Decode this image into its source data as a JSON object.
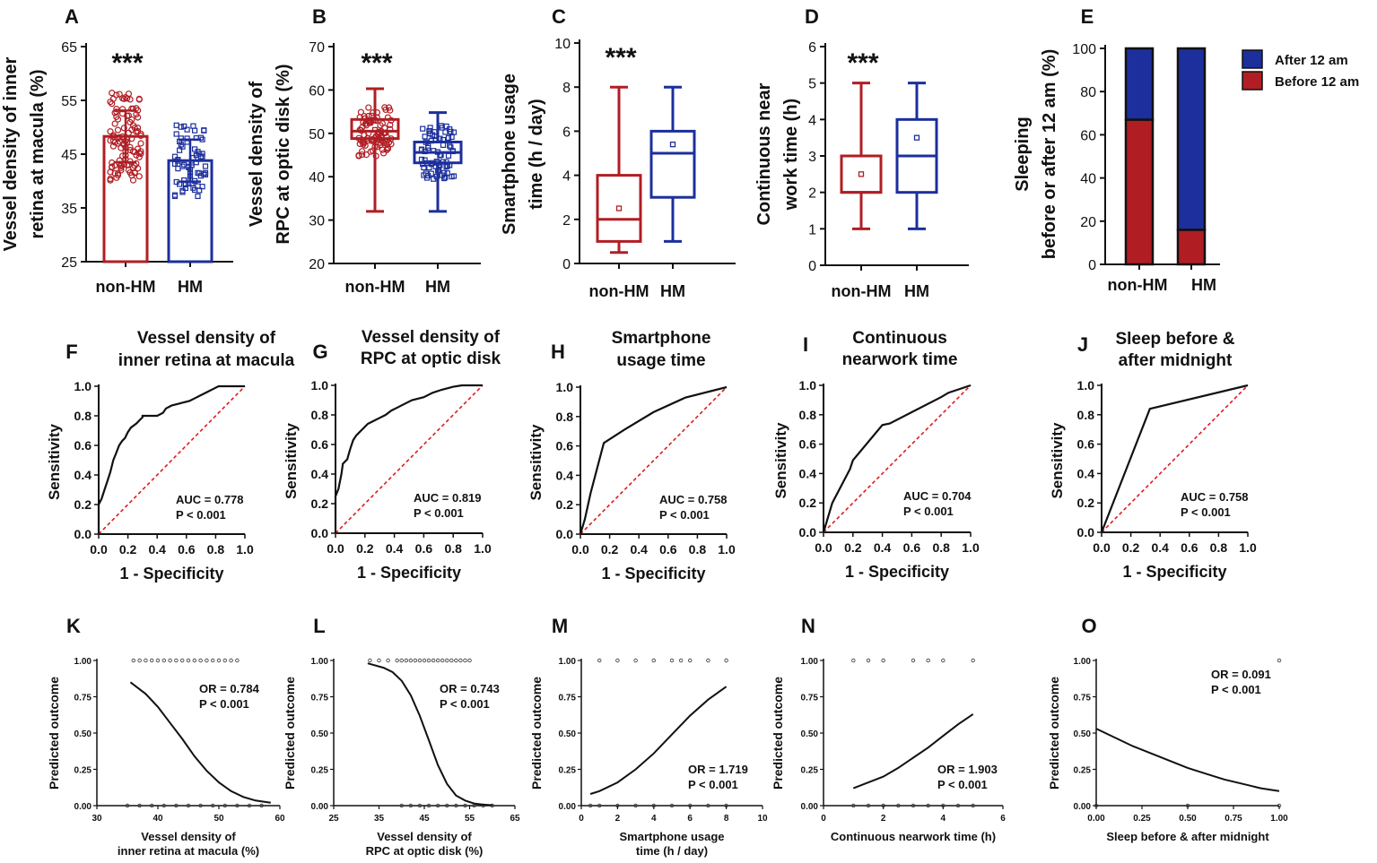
{
  "colors": {
    "red": "#b01e24",
    "blue": "#1c2f9c",
    "black": "#111111",
    "ref": "#e01a1a"
  },
  "chart_data": [
    {
      "id": "A",
      "letter": "A",
      "type": "bar",
      "title": [
        "Vessel density of inner",
        "retina at macula (%)"
      ],
      "categories": [
        "non-HM",
        "HM"
      ],
      "values": [
        48.3,
        43.8
      ],
      "sd": [
        4.8,
        3.9
      ],
      "ylim": [
        25,
        65
      ],
      "yticks": [
        25,
        35,
        45,
        55,
        65
      ],
      "stars": "***",
      "series_colors": [
        "red",
        "blue"
      ]
    },
    {
      "id": "B",
      "letter": "B",
      "type": "box",
      "title": [
        "Vessel density of",
        "RPC at optic disk (%)"
      ],
      "categories": [
        "non-HM",
        "HM"
      ],
      "boxes": [
        {
          "min": 32,
          "q1": 48.8,
          "median": 50.5,
          "q3": 53.2,
          "max": 60.3,
          "mean": 50.8
        },
        {
          "min": 32,
          "q1": 43.2,
          "median": 45.6,
          "q3": 48,
          "max": 54.8,
          "mean": 45.7
        }
      ],
      "ylim": [
        20,
        70
      ],
      "yticks": [
        20,
        30,
        40,
        50,
        60,
        70
      ],
      "stars": "***",
      "series_colors": [
        "red",
        "blue"
      ]
    },
    {
      "id": "C",
      "letter": "C",
      "type": "box",
      "title": [
        "Smartphone usage",
        "time (h / day)"
      ],
      "categories": [
        "non-HM",
        "HM"
      ],
      "boxes": [
        {
          "min": 0.5,
          "q1": 1,
          "median": 2,
          "q3": 4,
          "max": 8,
          "mean": 2.5
        },
        {
          "min": 1,
          "q1": 3,
          "median": 5,
          "q3": 6,
          "max": 8,
          "mean": 5.4
        }
      ],
      "ylim": [
        0,
        10
      ],
      "yticks": [
        0,
        2,
        4,
        6,
        8,
        10
      ],
      "stars": "***",
      "series_colors": [
        "red",
        "blue"
      ]
    },
    {
      "id": "D",
      "letter": "D",
      "type": "box",
      "title": [
        "Continuous near",
        "work time (h)"
      ],
      "categories": [
        "non-HM",
        "HM"
      ],
      "boxes": [
        {
          "min": 1,
          "q1": 2,
          "median": 2,
          "q3": 3,
          "max": 5,
          "mean": 2.5
        },
        {
          "min": 1,
          "q1": 2,
          "median": 3,
          "q3": 4,
          "max": 5,
          "mean": 3.5
        }
      ],
      "ylim": [
        0,
        6
      ],
      "yticks": [
        0,
        1,
        2,
        3,
        4,
        5,
        6
      ],
      "stars": "***",
      "series_colors": [
        "red",
        "blue"
      ]
    },
    {
      "id": "E",
      "letter": "E",
      "type": "stacked_bar",
      "title": [
        "Sleeping",
        "before or after 12 am (%)"
      ],
      "categories": [
        "non-HM",
        "HM"
      ],
      "series": [
        {
          "name": "Before 12 am",
          "values": [
            67,
            16
          ],
          "color": "red"
        },
        {
          "name": "After   12 am",
          "values": [
            33,
            84
          ],
          "color": "blue"
        }
      ],
      "ylim": [
        0,
        100
      ],
      "yticks": [
        0,
        20,
        40,
        60,
        80,
        100
      ]
    },
    {
      "id": "F",
      "letter": "F",
      "type": "line",
      "title": [
        "Vessel density of",
        "inner retina at macula"
      ],
      "xlabel": "1 - Specificity",
      "ylabel": "Sensitivity",
      "auc": "AUC = 0.778",
      "p": "P < 0.001",
      "x": [
        0,
        0,
        0.02,
        0.04,
        0.06,
        0.08,
        0.1,
        0.12,
        0.14,
        0.16,
        0.18,
        0.2,
        0.22,
        0.26,
        0.28,
        0.3,
        0.3,
        0.32,
        0.36,
        0.4,
        0.44,
        0.46,
        0.48,
        0.5,
        0.54,
        0.58,
        0.62,
        0.66,
        0.7,
        0.74,
        0.78,
        0.82,
        1
      ],
      "y": [
        0,
        0.2,
        0.24,
        0.3,
        0.36,
        0.42,
        0.5,
        0.55,
        0.6,
        0.63,
        0.65,
        0.69,
        0.72,
        0.75,
        0.77,
        0.79,
        0.8,
        0.8,
        0.8,
        0.8,
        0.82,
        0.85,
        0.86,
        0.87,
        0.88,
        0.89,
        0.9,
        0.92,
        0.94,
        0.96,
        0.98,
        1,
        1
      ]
    },
    {
      "id": "G",
      "letter": "G",
      "type": "line",
      "title": [
        "Vessel density of",
        "RPC at optic disk"
      ],
      "xlabel": "1 - Specificity",
      "ylabel": "Sensitivity",
      "auc": "AUC = 0.819",
      "p": "P < 0.001",
      "x": [
        0,
        0,
        0.02,
        0.04,
        0.05,
        0.08,
        0.1,
        0.12,
        0.14,
        0.16,
        0.18,
        0.2,
        0.22,
        0.26,
        0.3,
        0.34,
        0.38,
        0.42,
        0.48,
        0.52,
        0.6,
        0.66,
        0.72,
        0.8,
        0.86,
        1
      ],
      "y": [
        0,
        0.25,
        0.3,
        0.4,
        0.47,
        0.5,
        0.57,
        0.63,
        0.66,
        0.68,
        0.7,
        0.72,
        0.74,
        0.76,
        0.78,
        0.8,
        0.83,
        0.85,
        0.88,
        0.9,
        0.92,
        0.95,
        0.97,
        0.99,
        1,
        1
      ]
    },
    {
      "id": "H",
      "letter": "H",
      "type": "line",
      "title": [
        "Smartphone",
        "usage time"
      ],
      "xlabel": "1 - Specificity",
      "ylabel": "Sensitivity",
      "auc": "AUC = 0.758",
      "p": "P < 0.001",
      "x": [
        0,
        0.03,
        0.07,
        0.16,
        0.3,
        0.5,
        0.72,
        1
      ],
      "y": [
        0,
        0.1,
        0.28,
        0.62,
        0.71,
        0.83,
        0.93,
        1
      ]
    },
    {
      "id": "I",
      "letter": "I",
      "type": "line",
      "title": [
        "Continuous",
        "nearwork time"
      ],
      "xlabel": "1 - Specificity",
      "ylabel": "Sensitivity",
      "auc": "AUC = 0.704",
      "p": "P < 0.001",
      "x": [
        0,
        0.06,
        0.18,
        0.2,
        0.4,
        0.45,
        0.8,
        0.85,
        1
      ],
      "y": [
        0,
        0.2,
        0.43,
        0.49,
        0.73,
        0.74,
        0.92,
        0.95,
        1
      ]
    },
    {
      "id": "J",
      "letter": "J",
      "type": "line",
      "title": [
        "Sleep before &",
        "after midnight"
      ],
      "xlabel": "1 - Specificity",
      "ylabel": "Sensitivity",
      "auc": "AUC = 0.758",
      "p": "P < 0.001",
      "x": [
        0,
        0.33,
        1
      ],
      "y": [
        0,
        0.84,
        1
      ]
    },
    {
      "id": "K",
      "letter": "K",
      "type": "logistic",
      "xlabel": [
        "Vessel density of",
        "inner retina at macula (%)"
      ],
      "ylabel": "Predicted outcome",
      "or": "OR = 0.784",
      "p": "P < 0.001",
      "xlim": [
        30,
        60
      ],
      "xticks": [
        30,
        40,
        50,
        60
      ],
      "curve_x": [
        35.5,
        38,
        40,
        42,
        44,
        46,
        48,
        50,
        52,
        54,
        56,
        58.5
      ],
      "curve_y": [
        0.85,
        0.77,
        0.68,
        0.57,
        0.46,
        0.34,
        0.24,
        0.16,
        0.1,
        0.06,
        0.035,
        0.02
      ],
      "points1_x": [
        36,
        37,
        38,
        39,
        40,
        41,
        42,
        43,
        44,
        45,
        46,
        47,
        48,
        49,
        50,
        51,
        52,
        53
      ],
      "points0_x": [
        35,
        37,
        39,
        41,
        43,
        45,
        47,
        49,
        51,
        53,
        55,
        57
      ]
    },
    {
      "id": "L",
      "letter": "L",
      "type": "logistic",
      "xlabel": [
        "Vessel density of",
        "RPC at optic disk (%)"
      ],
      "ylabel": "Predicted outcome",
      "or": "OR = 0.743",
      "p": "P < 0.001",
      "xlim": [
        25,
        65
      ],
      "xticks": [
        25,
        35,
        45,
        55,
        65
      ],
      "curve_x": [
        32.5,
        36,
        38,
        40,
        42,
        44,
        46,
        48,
        50,
        52,
        54,
        56,
        58,
        60
      ],
      "curve_y": [
        0.98,
        0.95,
        0.92,
        0.86,
        0.76,
        0.62,
        0.45,
        0.28,
        0.15,
        0.07,
        0.035,
        0.015,
        0.007,
        0.003
      ],
      "points1_x": [
        33,
        35,
        37,
        39,
        40,
        41,
        42,
        43,
        44,
        45,
        46,
        47,
        48,
        49,
        50,
        51,
        52,
        53,
        54,
        55
      ],
      "points0_x": [
        40,
        42,
        44,
        46,
        48,
        50,
        52,
        54,
        56,
        58,
        60
      ]
    },
    {
      "id": "M",
      "letter": "M",
      "type": "logistic",
      "xlabel": [
        "Smartphone usage",
        "time (h / day)"
      ],
      "ylabel": "Predicted outcome",
      "or": "OR = 1.719",
      "p": "P < 0.001",
      "xlim": [
        0,
        10
      ],
      "xticks": [
        0,
        2,
        4,
        6,
        8,
        10
      ],
      "curve_x": [
        0.5,
        1,
        2,
        3,
        4,
        5,
        6,
        7,
        8
      ],
      "curve_y": [
        0.08,
        0.1,
        0.16,
        0.25,
        0.36,
        0.49,
        0.62,
        0.73,
        0.82
      ],
      "points1_x": [
        1,
        2,
        3,
        4,
        5,
        5.5,
        6,
        7,
        8
      ],
      "points0_x": [
        0.5,
        1,
        2,
        3,
        4,
        5,
        6,
        7,
        8
      ]
    },
    {
      "id": "N",
      "letter": "N",
      "type": "logistic",
      "xlabel": [
        "Continuous nearwork time (h)"
      ],
      "ylabel": "Predicted outcome",
      "or": "OR = 1.903",
      "p": "P < 0.001",
      "xlim": [
        0,
        6
      ],
      "xticks": [
        0,
        2,
        4,
        6
      ],
      "curve_x": [
        1,
        1.5,
        2,
        2.5,
        3,
        3.5,
        4,
        4.5,
        5
      ],
      "curve_y": [
        0.12,
        0.16,
        0.2,
        0.26,
        0.33,
        0.4,
        0.48,
        0.56,
        0.63
      ],
      "points1_x": [
        1,
        1.5,
        2,
        3,
        3.5,
        4,
        5
      ],
      "points0_x": [
        1,
        1.5,
        2,
        2.5,
        3,
        3.5,
        4,
        4.5,
        5
      ]
    },
    {
      "id": "O",
      "letter": "O",
      "type": "logistic",
      "xlabel": [
        "Sleep before & after midnight"
      ],
      "ylabel": "Predicted outcome",
      "or": "OR = 0.091",
      "p": "P < 0.001",
      "xlim": [
        0,
        1
      ],
      "xticks": [
        0,
        0.25,
        0.5,
        0.75,
        1
      ],
      "xtick_labels": [
        "0.00",
        "0.25",
        "0.50",
        "0.75",
        "1.00"
      ],
      "curve_x": [
        0,
        0.1,
        0.2,
        0.3,
        0.4,
        0.5,
        0.6,
        0.7,
        0.8,
        0.9,
        1
      ],
      "curve_y": [
        0.53,
        0.47,
        0.41,
        0.36,
        0.31,
        0.26,
        0.22,
        0.18,
        0.15,
        0.12,
        0.1
      ],
      "points1_x": [
        1
      ],
      "points0_x": [
        0,
        0.5,
        1
      ]
    }
  ],
  "roc_ticks": [
    0,
    0.2,
    0.4,
    0.6,
    0.8,
    1
  ],
  "roc_tick_labels": [
    "0.0",
    "0.2",
    "0.4",
    "0.6",
    "0.8",
    "1.0"
  ],
  "logit_yticks": [
    0,
    0.25,
    0.5,
    0.75,
    1
  ],
  "logit_ytick_labels": [
    "0.00",
    "0.25",
    "0.50",
    "0.75",
    "1.00"
  ]
}
